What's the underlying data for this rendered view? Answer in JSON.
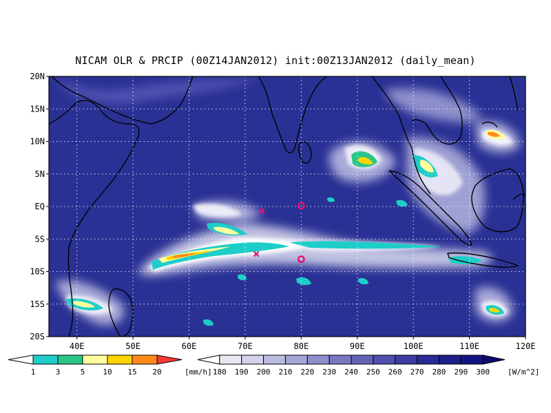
{
  "title": "NICAM OLR & PRCIP (00Z14JAN2012) init:00Z13JAN2012 (daily_mean)",
  "map": {
    "lon_range": [
      35,
      120
    ],
    "lat_range": [
      -20,
      20
    ],
    "lon_ticks": [
      {
        "value": 40,
        "label": "40E"
      },
      {
        "value": 50,
        "label": "50E"
      },
      {
        "value": 60,
        "label": "60E"
      },
      {
        "value": 70,
        "label": "70E"
      },
      {
        "value": 80,
        "label": "80E"
      },
      {
        "value": 90,
        "label": "90E"
      },
      {
        "value": 100,
        "label": "100E"
      },
      {
        "value": 110,
        "label": "110E"
      },
      {
        "value": 120,
        "label": "120E"
      }
    ],
    "lat_ticks": [
      {
        "value": 20,
        "label": "20N"
      },
      {
        "value": 15,
        "label": "15N"
      },
      {
        "value": 10,
        "label": "10N"
      },
      {
        "value": 5,
        "label": "5N"
      },
      {
        "value": 0,
        "label": "EQ"
      },
      {
        "value": -5,
        "label": "5S"
      },
      {
        "value": -10,
        "label": "10S"
      },
      {
        "value": -15,
        "label": "15S"
      },
      {
        "value": -20,
        "label": "20S"
      }
    ],
    "grid": "dotted",
    "background_color": "#2a3194",
    "markers": [
      {
        "type": "x",
        "lon": 73,
        "lat": -0.7,
        "color": "#e0146e"
      },
      {
        "type": "o",
        "lon": 80,
        "lat": 0.1,
        "color": "#e0146e"
      },
      {
        "type": "x",
        "lon": 72,
        "lat": -7.3,
        "color": "#e0146e"
      },
      {
        "type": "o",
        "lon": 80,
        "lat": -8.1,
        "color": "#e0146e"
      }
    ]
  },
  "precip_colorbar": {
    "unit": "[mm/h]",
    "colors": [
      "#ffffff",
      "#1ecdc8",
      "#2bc58a",
      "#ffff9e",
      "#ffd400",
      "#ff8a1a",
      "#ff3636"
    ],
    "ticks": [
      "1",
      "3",
      "5",
      "10",
      "15",
      "20"
    ]
  },
  "olr_colorbar": {
    "unit": "[W/m^2]",
    "colors": [
      "#ffffff",
      "#e8e8f5",
      "#d2d2eb",
      "#bcbce1",
      "#a5a5d6",
      "#8f8fcc",
      "#7878c2",
      "#6363b7",
      "#4f4fad",
      "#3c3ca2",
      "#2a2a98",
      "#1d1d8c",
      "#141480",
      "#0c0c70"
    ],
    "ticks": [
      "180",
      "190",
      "200",
      "210",
      "220",
      "230",
      "240",
      "250",
      "260",
      "270",
      "280",
      "290",
      "300"
    ]
  }
}
